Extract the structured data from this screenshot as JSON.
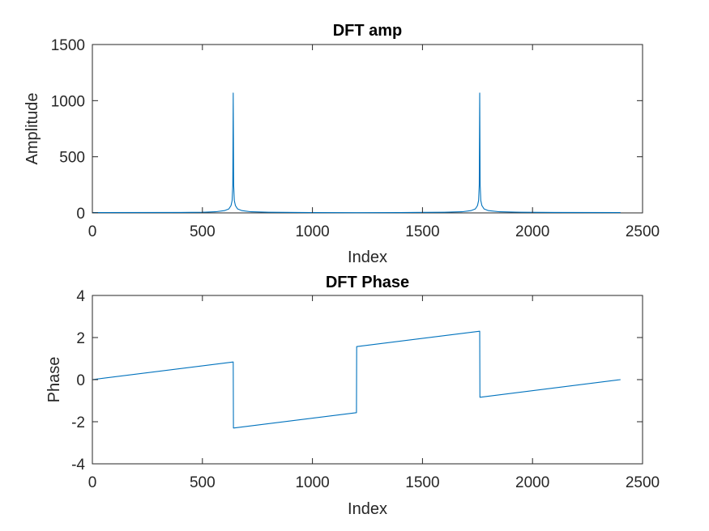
{
  "chart_data": [
    {
      "type": "line",
      "title": "DFT amp",
      "xlabel": "Index",
      "ylabel": "Amplitude",
      "xlim": [
        0,
        2500
      ],
      "ylim": [
        0,
        1500
      ],
      "xticks": [
        0,
        500,
        1000,
        1500,
        2000,
        2500
      ],
      "yticks": [
        0,
        500,
        1000,
        1500
      ],
      "grid": false,
      "series": [
        {
          "color": "#0072bd",
          "x": [
            0,
            400,
            500,
            560,
            600,
            620,
            630,
            635,
            638,
            640,
            642,
            645,
            650,
            660,
            680,
            720,
            800,
            1000,
            1200,
            1400,
            1600,
            1680,
            1720,
            1740,
            1750,
            1755,
            1758,
            1760,
            1762,
            1765,
            1770,
            1780,
            1800,
            1850,
            1950,
            2100,
            2400
          ],
          "y": [
            3,
            4,
            6,
            10,
            20,
            35,
            65,
            110,
            250,
            1068,
            250,
            110,
            65,
            35,
            20,
            10,
            6,
            3,
            2,
            3,
            6,
            10,
            20,
            35,
            65,
            110,
            250,
            1068,
            250,
            110,
            65,
            35,
            20,
            10,
            6,
            4,
            3
          ]
        }
      ]
    },
    {
      "type": "line",
      "title": "DFT Phase",
      "xlabel": "Index",
      "ylabel": "Phase",
      "xlim": [
        0,
        2500
      ],
      "ylim": [
        -4,
        4
      ],
      "xticks": [
        0,
        500,
        1000,
        1500,
        2000,
        2500
      ],
      "yticks": [
        -4,
        -2,
        0,
        2,
        4
      ],
      "grid": false,
      "series": [
        {
          "color": "#0072bd",
          "x": [
            0,
            640,
            641,
            1200,
            1201,
            1760,
            1761,
            2400
          ],
          "y": [
            0,
            0.84,
            -2.3,
            -1.57,
            1.57,
            2.3,
            -0.84,
            0
          ]
        }
      ]
    }
  ]
}
